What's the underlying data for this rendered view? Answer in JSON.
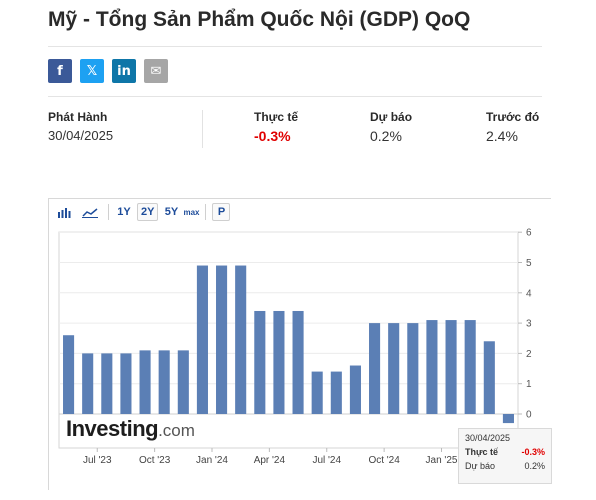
{
  "page": {
    "title": "Mỹ - Tổng Sản Phẩm Quốc Nội (GDP) QoQ"
  },
  "share": {
    "facebook_icon": "f",
    "twitter_icon": "𝕏",
    "linkedin_icon": "in",
    "email_icon": "✉",
    "colors": {
      "facebook": "#3b5998",
      "twitter": "#1da1f2",
      "linkedin": "#0e76a8",
      "email": "#a6a6a6"
    }
  },
  "stats": {
    "release_label": "Phát Hành",
    "release_date": "30/04/2025",
    "actual_label": "Thực tế",
    "actual_value": "-0.3%",
    "forecast_label": "Dự báo",
    "forecast_value": "0.2%",
    "previous_label": "Trước đó",
    "previous_value": "2.4%"
  },
  "toolbar": {
    "bar_icon": "bar-chart-icon",
    "line_icon": "line-chart-icon",
    "r1y": "1Y",
    "r2y": "2Y",
    "r5y": "5Y",
    "rmax": "max",
    "p": "P"
  },
  "watermark": {
    "brand": "Investing",
    "suffix": ".com"
  },
  "tooltip": {
    "date": "30/04/2025",
    "actual_label": "Thực tế",
    "actual_value": "-0.3%",
    "forecast_label": "Dự báo",
    "forecast_value": "0.2%"
  },
  "chart_data": {
    "type": "bar",
    "values": [
      2.6,
      2.0,
      2.0,
      2.0,
      2.1,
      2.1,
      2.1,
      4.9,
      4.9,
      4.9,
      3.4,
      3.4,
      3.4,
      1.4,
      1.4,
      1.6,
      3.0,
      3.0,
      3.0,
      3.1,
      3.1,
      3.1,
      2.4,
      -0.3
    ],
    "x_tick_labels": [
      "Jul '23",
      "Oct '23",
      "Jan '24",
      "Apr '24",
      "Jul '24",
      "Oct '24",
      "Jan '25"
    ],
    "x_tick_positions": [
      1.5,
      4.5,
      7.5,
      10.5,
      13.5,
      16.5,
      19.5
    ],
    "y_ticks": [
      6,
      5,
      4,
      3,
      2,
      1,
      0
    ],
    "ylim": [
      -0.5,
      6
    ],
    "bar_color": "#5b7fb5",
    "grid": true
  }
}
